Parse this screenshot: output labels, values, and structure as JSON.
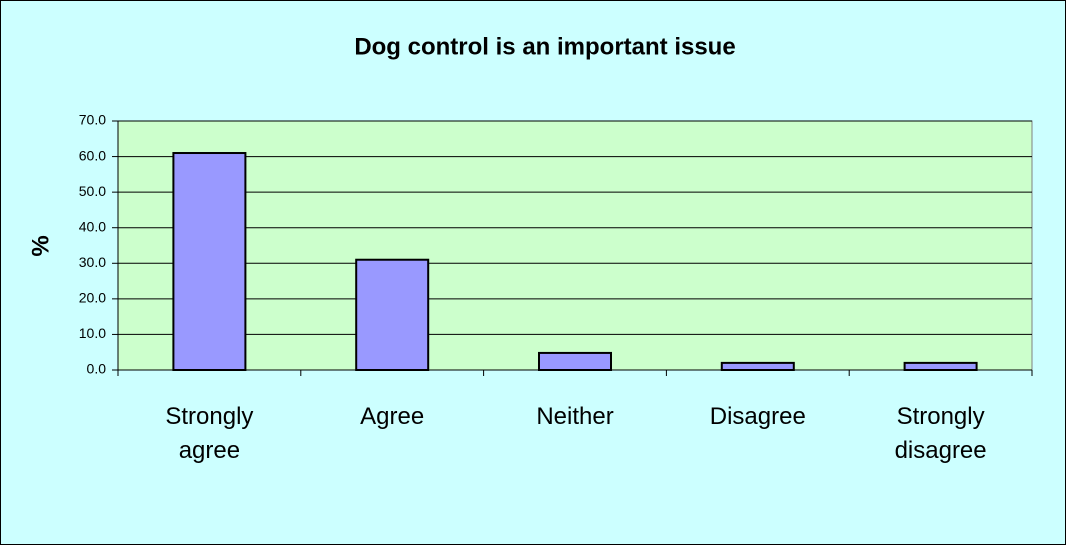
{
  "chart_data": {
    "type": "bar",
    "title": "Dog control is an important issue",
    "y_label": "%",
    "categories": [
      "Strongly agree",
      "Agree",
      "Neither",
      "Disagree",
      "Strongly disagree"
    ],
    "values": [
      61,
      31,
      4.8,
      2,
      2
    ],
    "color": "#9999ff",
    "ylim": [
      0,
      70
    ],
    "yticks": [
      {
        "value": 0,
        "label": "0.0"
      },
      {
        "value": 10,
        "label": "10.0"
      },
      {
        "value": 20,
        "label": "20.0"
      },
      {
        "value": 30,
        "label": "30.0"
      },
      {
        "value": 40,
        "label": "40.0"
      },
      {
        "value": 50,
        "label": "50.0"
      },
      {
        "value": 60,
        "label": "60.0"
      },
      {
        "value": 70,
        "label": "70.0"
      }
    ],
    "grid": true
  }
}
